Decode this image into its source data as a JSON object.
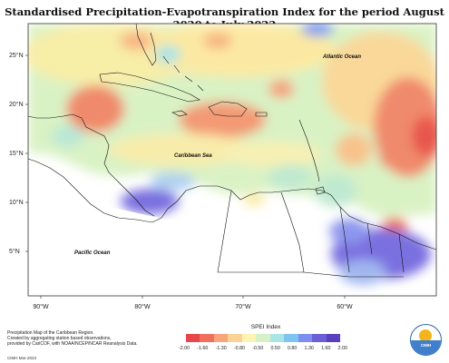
{
  "title": "Standardised Precipitation-Evapotranspiration Index for the period August 2020 to July 2022",
  "map_labels": {
    "atlantic": "Atlantic Ocean",
    "caribbean": "Caribbean Sea",
    "pacific": "Pacific Ocean"
  },
  "lat_labels": [
    "25°N",
    "20°N",
    "15°N",
    "10°N",
    "5°N"
  ],
  "lon_labels": [
    "90°W",
    "80°W",
    "70°W",
    "60°W"
  ],
  "footer": {
    "line1": "Precipitation Map of the Caribbean Region.",
    "line2": "Created by aggregating station based observations,",
    "line3": "provided by CariCOF, with NOAA/NCEP/NCAR Reanalysis Data.",
    "credit": "CIMH Mar-2023"
  },
  "legend": {
    "title": "SPEI Index",
    "ticks": [
      "-2.00",
      "-1.60",
      "-1.30",
      "-0.80",
      "-0.50",
      "0.50",
      "0.80",
      "1.30",
      "1.60",
      "2.00"
    ],
    "colors": [
      "#e8464a",
      "#f0705c",
      "#f8a57c",
      "#fbd394",
      "#fdf3b4",
      "#d7f0c6",
      "#a9e4e6",
      "#7ec4f0",
      "#7d8ef0",
      "#6a5fd6",
      "#5a3fc0"
    ]
  },
  "logo_text": "CIMH",
  "palette": {
    "ocean_base": "#c9efc0",
    "dry_strong": "#e8464a",
    "dry": "#f8a57c",
    "near_normal": "#fdf3b4",
    "wet": "#a9e4e6",
    "very_wet": "#6a5fd6"
  }
}
